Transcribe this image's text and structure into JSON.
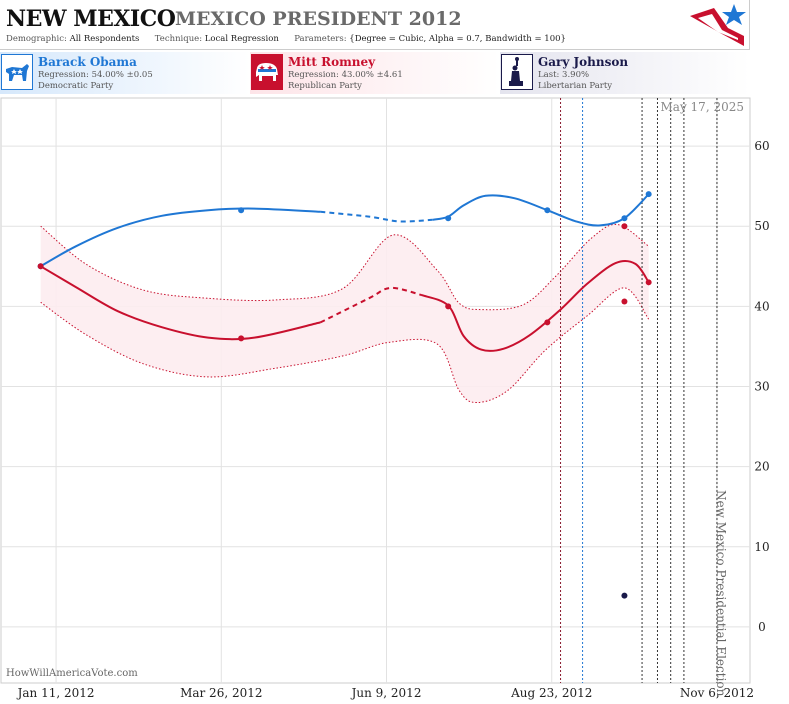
{
  "header": {
    "state": "NEW MEXICO",
    "race": "MEXICO PRESIDENT 2012",
    "demographic_label": "Demographic:",
    "demographic_value": "All Respondents",
    "technique_label": "Technique:",
    "technique_value": "Local Regression",
    "parameters_label": "Parameters:",
    "parameters_value": "{Degree = Cubic, Alpha = 0.7, Bandwidth = 100}"
  },
  "candidates": [
    {
      "name": "Barack Obama",
      "stat": "Regression: 54.00% ±0.05",
      "party": "Democratic Party",
      "color": "#1f77d4",
      "icon": "donkey-icon"
    },
    {
      "name": "Mitt Romney",
      "stat": "Regression: 43.00% ±4.61",
      "party": "Republican Party",
      "color": "#c8102e",
      "icon": "elephant-icon"
    },
    {
      "name": "Gary Johnson",
      "stat": "Last: 3.90%",
      "party": "Libertarian Party",
      "color": "#1a1a4a",
      "icon": "statue-of-liberty-icon"
    }
  ],
  "date_stamp": "May 17, 2025",
  "election_label": "New Mexico Presidential Election",
  "watermark": "HowWillAmericaVote.com",
  "chart_data": {
    "type": "line",
    "x_tick_labels": [
      "Jan 11, 2012",
      "Mar 26, 2012",
      "Jun 9, 2012",
      "Aug 23, 2012",
      "Nov 6, 2012"
    ],
    "x_ticks": [
      "2012-01-11",
      "2012-03-26",
      "2012-06-09",
      "2012-08-23",
      "2012-11-06"
    ],
    "xlim": [
      "2011-12-17",
      "2012-11-21"
    ],
    "ylim": [
      -7,
      66
    ],
    "y_ticks": [
      0,
      10,
      20,
      30,
      40,
      50,
      60
    ],
    "grid": true,
    "series": [
      {
        "name": "Barack Obama",
        "color": "#1f77d4",
        "points": [
          [
            "2012-01-04",
            45
          ],
          [
            "2012-03-35",
            52
          ],
          [
            "2012-07-07",
            51
          ],
          [
            "2012-08-21",
            52
          ],
          [
            "2012-09-25",
            51
          ],
          [
            "2012-10-06",
            54
          ]
        ],
        "curve": [
          [
            "2012-01-04",
            45
          ],
          [
            "2012-01-20",
            47.5
          ],
          [
            "2012-02-08",
            49.8
          ],
          [
            "2012-02-28",
            51.3
          ],
          [
            "2012-03-20",
            52
          ],
          [
            "2012-04-10",
            52.2
          ],
          [
            "2012-05-10",
            51.8
          ],
          [
            "2012-06-01",
            51.2
          ],
          [
            "2012-06-15",
            50.6
          ],
          [
            "2012-06-30",
            50.8
          ],
          [
            "2012-07-07",
            51.2
          ],
          [
            "2012-07-14",
            52.6
          ],
          [
            "2012-07-24",
            53.8
          ],
          [
            "2012-08-06",
            53.5
          ],
          [
            "2012-08-21",
            52
          ],
          [
            "2012-09-03",
            50.6
          ],
          [
            "2012-09-14",
            50.1
          ],
          [
            "2012-09-25",
            51
          ],
          [
            "2012-10-06",
            54
          ]
        ]
      },
      {
        "name": "Mitt Romney",
        "color": "#c8102e",
        "points": [
          [
            "2012-01-04",
            45
          ],
          [
            "2012-03-35",
            36
          ],
          [
            "2012-07-07",
            40
          ],
          [
            "2012-08-21",
            38
          ],
          [
            "2012-09-25",
            50
          ],
          [
            "2012-09-25",
            40.6
          ],
          [
            "2012-10-06",
            43
          ]
        ],
        "curve": [
          [
            "2012-01-04",
            45
          ],
          [
            "2012-01-20",
            42.4
          ],
          [
            "2012-02-08",
            39.4
          ],
          [
            "2012-02-28",
            37.4
          ],
          [
            "2012-03-20",
            36.1
          ],
          [
            "2012-04-10",
            36.1
          ],
          [
            "2012-05-10",
            38
          ],
          [
            "2012-06-01",
            41
          ],
          [
            "2012-06-11",
            42.3
          ],
          [
            "2012-06-25",
            41.4
          ],
          [
            "2012-07-07",
            40.1
          ],
          [
            "2012-07-14",
            36.3
          ],
          [
            "2012-07-22",
            34.6
          ],
          [
            "2012-08-01",
            34.7
          ],
          [
            "2012-08-13",
            36.4
          ],
          [
            "2012-08-27",
            39.6
          ],
          [
            "2012-09-08",
            42.8
          ],
          [
            "2012-09-21",
            45.4
          ],
          [
            "2012-09-30",
            45.3
          ],
          [
            "2012-10-06",
            43
          ]
        ],
        "band_upper": [
          [
            "2012-01-04",
            50
          ],
          [
            "2012-01-25",
            45.2
          ],
          [
            "2012-02-20",
            42
          ],
          [
            "2012-03-20",
            41
          ],
          [
            "2012-04-20",
            40.8
          ],
          [
            "2012-05-20",
            42.2
          ],
          [
            "2012-06-12",
            48.9
          ],
          [
            "2012-07-02",
            44.5
          ],
          [
            "2012-07-12",
            40.4
          ],
          [
            "2012-07-22",
            39.6
          ],
          [
            "2012-08-10",
            40.2
          ],
          [
            "2012-08-25",
            43.8
          ],
          [
            "2012-09-10",
            48.5
          ],
          [
            "2012-09-22",
            50.2
          ],
          [
            "2012-10-06",
            47.5
          ]
        ],
        "band_lower": [
          [
            "2012-01-04",
            40.5
          ],
          [
            "2012-01-25",
            36.4
          ],
          [
            "2012-02-20",
            32.8
          ],
          [
            "2012-03-20",
            31.2
          ],
          [
            "2012-04-20",
            32.3
          ],
          [
            "2012-05-20",
            33.8
          ],
          [
            "2012-06-10",
            35.5
          ],
          [
            "2012-07-02",
            35.3
          ],
          [
            "2012-07-12",
            29.5
          ],
          [
            "2012-07-20",
            28
          ],
          [
            "2012-08-03",
            29.5
          ],
          [
            "2012-08-20",
            34.5
          ],
          [
            "2012-09-08",
            38.8
          ],
          [
            "2012-09-25",
            42.3
          ],
          [
            "2012-10-06",
            38.4
          ]
        ]
      },
      {
        "name": "Gary Johnson",
        "color": "#1a1a4a",
        "points": [
          [
            "2012-09-25",
            3.9
          ]
        ]
      }
    ]
  }
}
